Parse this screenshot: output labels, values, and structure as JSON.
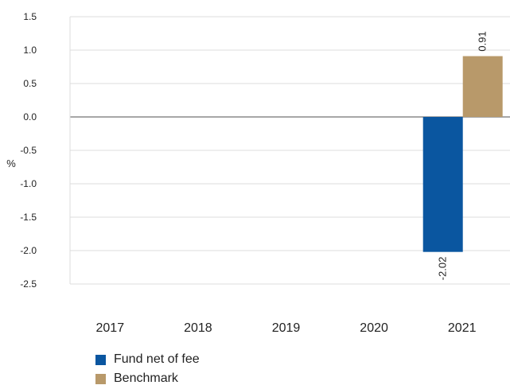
{
  "chart_data": {
    "type": "bar",
    "categories": [
      "2017",
      "2018",
      "2019",
      "2020",
      "2021"
    ],
    "series": [
      {
        "name": "Fund net of fee",
        "color": "#0a56a0",
        "values": [
          null,
          null,
          null,
          null,
          -2.02
        ],
        "labels": [
          null,
          null,
          null,
          null,
          "-2.02"
        ]
      },
      {
        "name": "Benchmark",
        "color": "#b8996a",
        "values": [
          null,
          null,
          null,
          null,
          0.91
        ],
        "labels": [
          null,
          null,
          null,
          null,
          "0.91"
        ]
      }
    ],
    "ylabel": "%",
    "ylim": [
      -2.5,
      1.5
    ],
    "yticks": [
      "1.5",
      "1.0",
      "0.5",
      "0.0",
      "-0.5",
      "-1.0",
      "-1.5",
      "-2.0",
      "-2.5"
    ],
    "ytick_values": [
      1.5,
      1.0,
      0.5,
      0.0,
      -0.5,
      -1.0,
      -1.5,
      -2.0,
      -2.5
    ],
    "grid": true,
    "legend_position": "bottom-left"
  }
}
